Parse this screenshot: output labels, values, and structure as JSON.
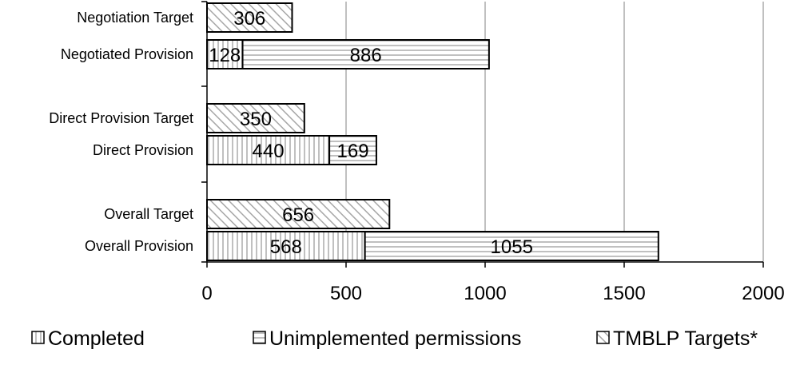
{
  "chart_data": {
    "type": "bar",
    "orientation": "horizontal",
    "stacked": true,
    "categories": [
      "Negotiation Target",
      "Negotiated Provision",
      "Direct Provision Target",
      "Direct Provision",
      "Overall Target",
      "Overall Provision"
    ],
    "series": [
      {
        "name": "Completed",
        "pattern": "vertical-lines",
        "values": [
          null,
          128,
          null,
          440,
          null,
          568
        ]
      },
      {
        "name": "Unimplemented permissions",
        "pattern": "horizontal-lines",
        "values": [
          null,
          886,
          null,
          169,
          null,
          1055
        ]
      },
      {
        "name": "TMBLP Targets*",
        "pattern": "diagonal-lines",
        "values": [
          306,
          null,
          350,
          null,
          656,
          null
        ]
      }
    ],
    "xlim": [
      0,
      2000
    ],
    "xticks": [
      "0",
      "500",
      "1000",
      "1500",
      "2000"
    ],
    "grid": true,
    "legend_position": "bottom",
    "colors": {
      "bar_fill": "#ffffff",
      "pattern": "#a6a6a6",
      "outline": "#000000",
      "grid": "#808080"
    }
  }
}
